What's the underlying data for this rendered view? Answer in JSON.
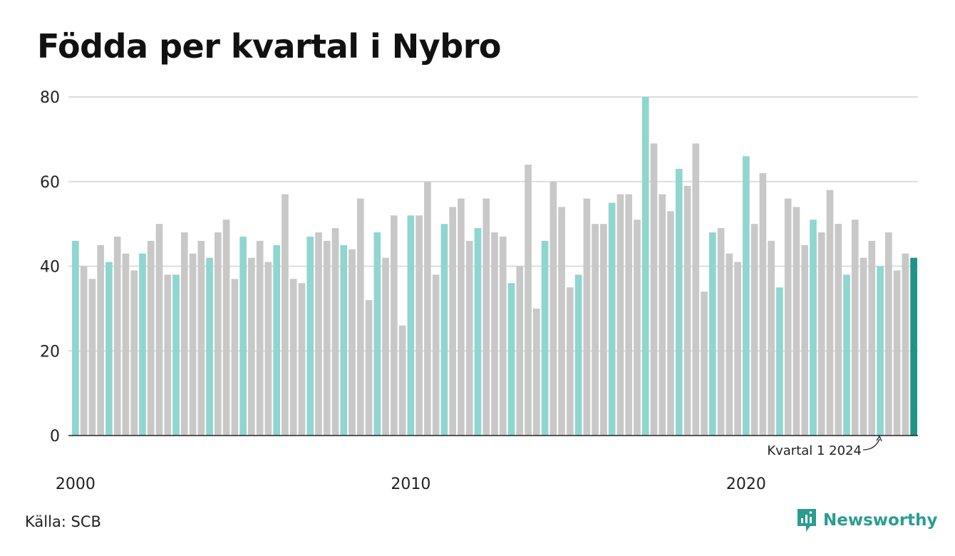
{
  "page": {
    "title": "Födda per kvartal i Nybro",
    "source": "Källa: SCB",
    "brand": "Newsworthy"
  },
  "colors": {
    "q1": "#8fd6cf",
    "other": "#c8c8c8",
    "highlight": "#1f9386",
    "grid": "#dddddd",
    "axis": "#222222",
    "brand": "#2a9d8f"
  },
  "chart_data": {
    "type": "bar",
    "title": "Födda per kvartal i Nybro",
    "xlabel": "",
    "ylabel": "",
    "ylim": [
      0,
      80
    ],
    "yticks": [
      0,
      20,
      40,
      60,
      80
    ],
    "xticks": [
      "2000",
      "2010",
      "2020"
    ],
    "grid": true,
    "start_year": 2000,
    "start_quarter": 1,
    "annotation": "Kvartal 1 2024",
    "values": [
      46,
      40,
      37,
      45,
      41,
      47,
      43,
      39,
      43,
      46,
      50,
      38,
      38,
      48,
      43,
      46,
      42,
      48,
      51,
      37,
      47,
      42,
      46,
      41,
      45,
      57,
      37,
      36,
      47,
      48,
      46,
      49,
      45,
      44,
      56,
      32,
      48,
      42,
      52,
      26,
      52,
      52,
      60,
      38,
      50,
      54,
      56,
      46,
      49,
      56,
      48,
      47,
      36,
      40,
      64,
      30,
      46,
      60,
      54,
      35,
      38,
      56,
      50,
      50,
      55,
      57,
      57,
      51,
      80,
      69,
      57,
      53,
      63,
      59,
      69,
      34,
      48,
      49,
      43,
      41,
      66,
      50,
      62,
      46,
      35,
      56,
      54,
      45,
      51,
      48,
      58,
      50,
      38,
      51,
      42,
      46,
      40,
      48,
      39,
      43,
      42
    ]
  }
}
